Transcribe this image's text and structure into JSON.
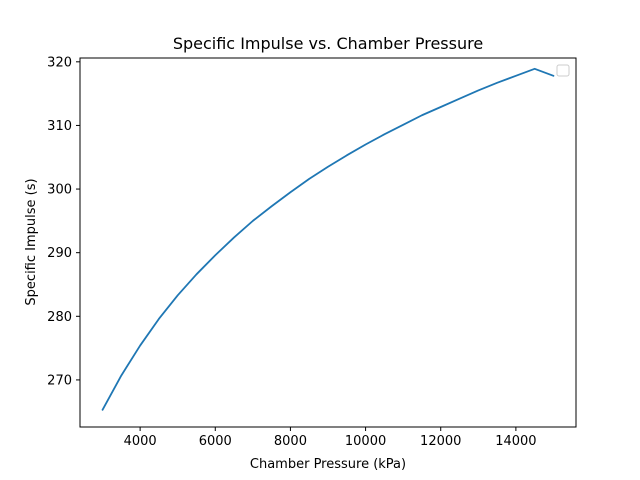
{
  "chart_data": {
    "type": "line",
    "title": "Specific Impulse vs. Chamber Pressure",
    "xlabel": "Chamber Pressure (kPa)",
    "ylabel": "Specific Impulse (s)",
    "xlim": [
      2400,
      15600
    ],
    "ylim": [
      262.6,
      320.6
    ],
    "xticks": [
      4000,
      6000,
      8000,
      10000,
      12000,
      14000
    ],
    "yticks": [
      270,
      280,
      290,
      300,
      310,
      320
    ],
    "grid": false,
    "legend": "top-right",
    "series": [
      {
        "color": "#1f77b4",
        "x": [
          3000,
          3500,
          4000,
          4500,
          5000,
          5500,
          6000,
          6500,
          7000,
          7500,
          8000,
          8500,
          9000,
          9500,
          10000,
          10500,
          11000,
          11500,
          12000,
          12500,
          13000,
          13500,
          14000,
          14500,
          15000
        ],
        "y": [
          265.3,
          270.7,
          275.4,
          279.6,
          283.3,
          286.6,
          289.6,
          292.4,
          295.0,
          297.3,
          299.5,
          301.6,
          303.5,
          305.3,
          307.0,
          308.6,
          310.1,
          311.6,
          312.9,
          314.2,
          315.5,
          316.7,
          317.8,
          318.9,
          317.8
        ]
      }
    ]
  }
}
